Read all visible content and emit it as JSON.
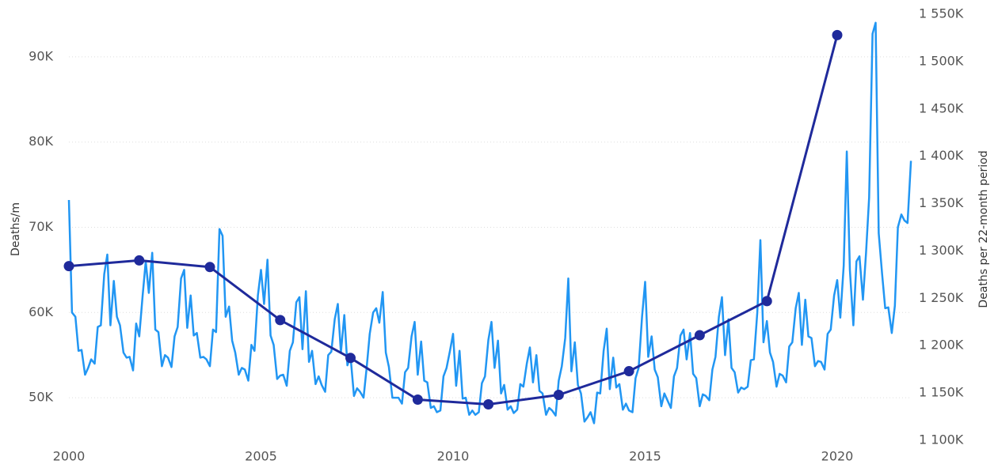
{
  "chart_data": {
    "type": "line",
    "ylabel": "Deaths/m",
    "y2label": "Deaths per 22-month period",
    "xlim": [
      2000,
      2022
    ],
    "xticks": [
      2000,
      2005,
      2010,
      2015,
      2020
    ],
    "ylim": [
      45000,
      95000
    ],
    "yticks": [
      {
        "value": 50000,
        "label": "50K"
      },
      {
        "value": 60000,
        "label": "60K"
      },
      {
        "value": 70000,
        "label": "70K"
      },
      {
        "value": 80000,
        "label": "80K"
      },
      {
        "value": 90000,
        "label": "90K"
      }
    ],
    "y2lim": [
      1100000,
      1550000
    ],
    "y2ticks": [
      {
        "value": 1100000,
        "label": "1 100K"
      },
      {
        "value": 1150000,
        "label": "1 150K"
      },
      {
        "value": 1200000,
        "label": "1 200K"
      },
      {
        "value": 1250000,
        "label": "1 250K"
      },
      {
        "value": 1300000,
        "label": "1 300K"
      },
      {
        "value": 1350000,
        "label": "1 350K"
      },
      {
        "value": 1400000,
        "label": "1 400K"
      },
      {
        "value": 1450000,
        "label": "1 450K"
      },
      {
        "value": 1500000,
        "label": "1 500K"
      },
      {
        "value": 1550000,
        "label": "1 550K"
      }
    ],
    "grid": true,
    "series": [
      {
        "color": "#2196f3",
        "axis": "y",
        "x": [
          2000,
          2000.08,
          2000.17,
          2000.25,
          2000.33,
          2000.42,
          2000.5,
          2000.58,
          2000.67,
          2000.75,
          2000.83,
          2000.92,
          2001,
          2001.08,
          2001.17,
          2001.25,
          2001.33,
          2001.42,
          2001.5,
          2001.58,
          2001.67,
          2001.75,
          2001.83,
          2001.92,
          2002,
          2002.08,
          2002.17,
          2002.25,
          2002.33,
          2002.42,
          2002.5,
          2002.58,
          2002.67,
          2002.75,
          2002.83,
          2002.92,
          2003,
          2003.08,
          2003.17,
          2003.25,
          2003.33,
          2003.42,
          2003.5,
          2003.58,
          2003.67,
          2003.75,
          2003.83,
          2003.92,
          2004,
          2004.08,
          2004.17,
          2004.25,
          2004.33,
          2004.42,
          2004.5,
          2004.58,
          2004.67,
          2004.75,
          2004.83,
          2004.92,
          2005,
          2005.08,
          2005.17,
          2005.25,
          2005.33,
          2005.42,
          2005.5,
          2005.58,
          2005.67,
          2005.75,
          2005.83,
          2005.92,
          2006,
          2006.08,
          2006.17,
          2006.25,
          2006.33,
          2006.42,
          2006.5,
          2006.58,
          2006.67,
          2006.75,
          2006.83,
          2006.92,
          2007,
          2007.08,
          2007.17,
          2007.25,
          2007.33,
          2007.42,
          2007.5,
          2007.58,
          2007.67,
          2007.75,
          2007.83,
          2007.92,
          2008,
          2008.08,
          2008.17,
          2008.25,
          2008.33,
          2008.42,
          2008.5,
          2008.58,
          2008.67,
          2008.75,
          2008.83,
          2008.92,
          2009,
          2009.08,
          2009.17,
          2009.25,
          2009.33,
          2009.42,
          2009.5,
          2009.58,
          2009.67,
          2009.75,
          2009.83,
          2009.92,
          2010,
          2010.08,
          2010.17,
          2010.25,
          2010.33,
          2010.42,
          2010.5,
          2010.58,
          2010.67,
          2010.75,
          2010.83,
          2010.92,
          2011,
          2011.08,
          2011.17,
          2011.25,
          2011.33,
          2011.42,
          2011.5,
          2011.58,
          2011.67,
          2011.75,
          2011.83,
          2011.92,
          2012,
          2012.08,
          2012.17,
          2012.25,
          2012.33,
          2012.42,
          2012.5,
          2012.58,
          2012.67,
          2012.75,
          2012.83,
          2012.92,
          2013,
          2013.08,
          2013.17,
          2013.25,
          2013.33,
          2013.42,
          2013.5,
          2013.58,
          2013.67,
          2013.75,
          2013.83,
          2013.92,
          2014,
          2014.08,
          2014.17,
          2014.25,
          2014.33,
          2014.42,
          2014.5,
          2014.58,
          2014.67,
          2014.75,
          2014.83,
          2014.92,
          2015,
          2015.08,
          2015.17,
          2015.25,
          2015.33,
          2015.42,
          2015.5,
          2015.58,
          2015.67,
          2015.75,
          2015.83,
          2015.92,
          2016,
          2016.08,
          2016.17,
          2016.25,
          2016.33,
          2016.42,
          2016.5,
          2016.58,
          2016.67,
          2016.75,
          2016.83,
          2016.92,
          2017,
          2017.08,
          2017.17,
          2017.25,
          2017.33,
          2017.42,
          2017.5,
          2017.58,
          2017.67,
          2017.75,
          2017.83,
          2017.92,
          2018,
          2018.08,
          2018.17,
          2018.25,
          2018.33,
          2018.42,
          2018.5,
          2018.58,
          2018.67,
          2018.75,
          2018.83,
          2018.92,
          2019,
          2019.08,
          2019.17,
          2019.25,
          2019.33,
          2019.42,
          2019.5,
          2019.58,
          2019.67,
          2019.75,
          2019.83,
          2019.92,
          2020,
          2020.08,
          2020.17,
          2020.25,
          2020.33,
          2020.42,
          2020.5,
          2020.58,
          2020.67,
          2020.75,
          2020.83,
          2020.92,
          2021,
          2021.08,
          2021.17,
          2021.25,
          2021.33,
          2021.42,
          2021.5,
          2021.58,
          2021.67,
          2021.75,
          2021.83,
          2021.92
        ],
        "values": [
          73200,
          60000,
          59500,
          55500,
          55600,
          52700,
          53500,
          54500,
          54000,
          58300,
          58500,
          64500,
          66800,
          58500,
          63700,
          59500,
          58500,
          55300,
          54700,
          54800,
          53200,
          58700,
          57200,
          62000,
          66000,
          62300,
          67000,
          58000,
          57700,
          53700,
          55000,
          54700,
          53600,
          57200,
          58300,
          64000,
          65000,
          58200,
          62000,
          57300,
          57600,
          54700,
          54800,
          54500,
          53700,
          58000,
          57700,
          69800,
          69000,
          59500,
          60700,
          56700,
          55300,
          52700,
          53500,
          53300,
          52000,
          56200,
          55500,
          62000,
          65000,
          61000,
          66200,
          57300,
          56200,
          52200,
          52600,
          52700,
          51400,
          55500,
          56500,
          61200,
          61800,
          55700,
          62500,
          54200,
          55500,
          51600,
          52500,
          51500,
          50700,
          55000,
          55400,
          59200,
          61000,
          55300,
          59700,
          53800,
          54900,
          50200,
          51100,
          50700,
          50000,
          53500,
          57500,
          60000,
          60500,
          58800,
          62400,
          55300,
          53600,
          50000,
          50000,
          50000,
          49300,
          53000,
          53500,
          57200,
          58900,
          52700,
          56600,
          52000,
          51800,
          48800,
          49000,
          48300,
          48500,
          52500,
          53500,
          55500,
          57500,
          51400,
          55500,
          49900,
          50000,
          48000,
          48500,
          48000,
          48300,
          51700,
          52500,
          56800,
          58900,
          53500,
          56700,
          50500,
          51500,
          48600,
          49000,
          48200,
          48600,
          51600,
          51300,
          54000,
          55900,
          51800,
          55000,
          50800,
          50500,
          48000,
          48800,
          48500,
          47900,
          52000,
          53700,
          57000,
          64000,
          53100,
          56500,
          51500,
          50500,
          47200,
          47700,
          48300,
          47000,
          50600,
          50500,
          55500,
          58100,
          51000,
          54700,
          51200,
          51600,
          48600,
          49300,
          48500,
          48300,
          52300,
          53500,
          59500,
          63600,
          54800,
          57200,
          53300,
          52400,
          49000,
          50500,
          49700,
          48800,
          52500,
          53500,
          57300,
          58000,
          54500,
          57600,
          52800,
          52300,
          49000,
          50400,
          50200,
          49700,
          53300,
          54800,
          59500,
          61800,
          55000,
          59200,
          53500,
          53000,
          50600,
          51200,
          51000,
          51300,
          54400,
          54500,
          60000,
          68500,
          56500,
          59000,
          55300,
          54200,
          51300,
          52800,
          52600,
          51800,
          56000,
          56500,
          60500,
          62300,
          56200,
          61500,
          57200,
          57000,
          53700,
          54300,
          54200,
          53300,
          57500,
          58000,
          62000,
          63800,
          59400,
          65500,
          78900,
          65000,
          58500,
          66000,
          66600,
          61500,
          67000,
          73500,
          92700,
          94000,
          69300,
          64500,
          60500,
          60600,
          57600,
          60800,
          70000,
          71500,
          70800,
          70500,
          77800
        ]
      },
      {
        "color": "#1f2a9b",
        "axis": "y2",
        "x": [
          2000,
          2001.83,
          2003.67,
          2005.5,
          2007.33,
          2009.08,
          2010.92,
          2012.75,
          2014.58,
          2016.42,
          2018.17,
          2020
        ],
        "values": [
          1284000,
          1290000,
          1283000,
          1227000,
          1187000,
          1143000,
          1138000,
          1148000,
          1173000,
          1211000,
          1247000,
          1528000
        ]
      }
    ]
  }
}
